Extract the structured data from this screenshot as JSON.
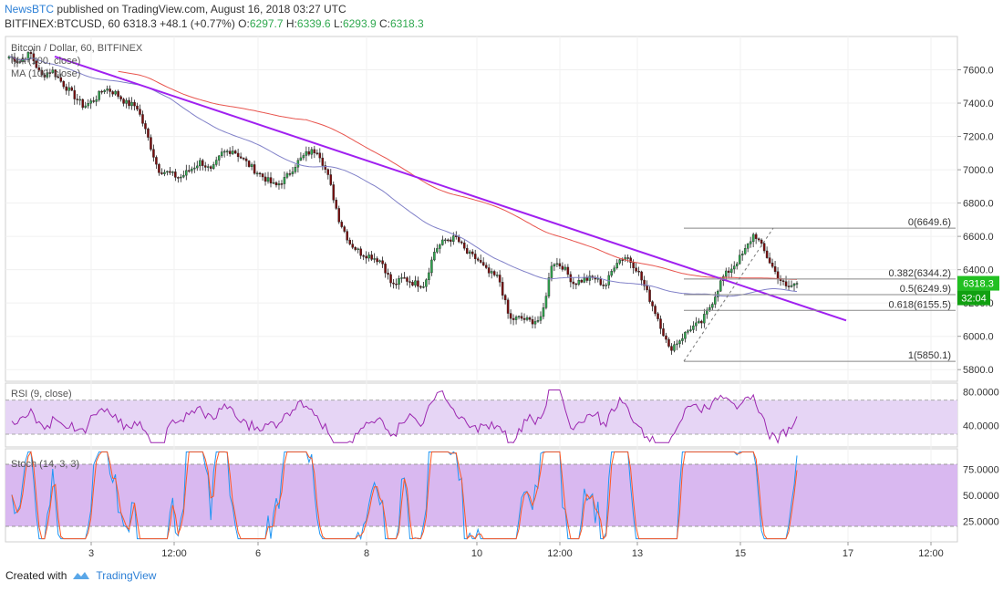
{
  "header": {
    "publisher": "NewsBTC",
    "published_text": "published on TradingView.com, August 16, 2018 03:27 UTC",
    "symbol": "BITFINEX:BTCUSD, 60",
    "last": "6318.3",
    "change": "+48.1 (+0.77%)",
    "o_label": "O:",
    "o_value": "6297.7",
    "h_label": "H:",
    "h_value": "6339.6",
    "l_label": "L:",
    "l_value": "6293.9",
    "c_label": "C:",
    "c_value": "6318.3"
  },
  "footer": {
    "created_with": "Created with",
    "brand": "TradingView"
  },
  "colors": {
    "up": "#2fa84f",
    "down": "#7a0b0b",
    "wick": "#222222",
    "trendline": "#a020f0",
    "ma100": "#8080c8",
    "ma200": "#e8554e",
    "rsi": "#9c27b0",
    "rsi_band": "#e6d5f5",
    "stoch_band": "#d9b8f0",
    "stoch_k": "#2196f3",
    "stoch_d": "#ff5722",
    "fib": "#888888",
    "price_tag": "#22c022"
  },
  "chart_data": [
    {
      "type": "candlestick",
      "title": "Bitcoin / Dollar, 60, BITFINEX",
      "series_labels": [
        "MA (100, close)",
        "MA (100, close)"
      ],
      "x_tick_labels": [
        "3",
        "12:00",
        "6",
        "8",
        "10",
        "12:00",
        "13",
        "15",
        "17",
        "12:00"
      ],
      "y_tick_labels": [
        "7600.0",
        "7400.0",
        "7200.0",
        "7000.0",
        "6800.0",
        "6600.0",
        "6400.0",
        "6200.0",
        "6000.0",
        "5800.0"
      ],
      "ylim": [
        5730,
        7800
      ],
      "last_price_label": "6318.3",
      "countdown_label": "32:04",
      "close_path": [
        7680,
        7650,
        7700,
        7560,
        7600,
        7520,
        7450,
        7380,
        7420,
        7490,
        7460,
        7400,
        7380,
        7200,
        7000,
        6980,
        6950,
        7000,
        7050,
        6990,
        7100,
        7120,
        7060,
        7000,
        6950,
        6900,
        6950,
        7040,
        7100,
        7120,
        6950,
        6700,
        6560,
        6500,
        6480,
        6450,
        6300,
        6350,
        6320,
        6310,
        6520,
        6580,
        6590,
        6500,
        6460,
        6380,
        6350,
        6100,
        6110,
        6090,
        6100,
        6450,
        6420,
        6320,
        6340,
        6350,
        6300,
        6450,
        6480,
        6400,
        6250,
        6100,
        5920,
        5980,
        6050,
        6080,
        6200,
        6350,
        6420,
        6500,
        6620,
        6500,
        6380,
        6290,
        6318
      ],
      "trendline_label": "Descending trend line",
      "fib_levels": [
        {
          "label": "0(6649.6)",
          "value": 6649.6
        },
        {
          "label": "0.382(6344.2)",
          "value": 6344.2
        },
        {
          "label": "0.5(6249.9)",
          "value": 6249.9
        },
        {
          "label": "0.618(6155.5)",
          "value": 6155.5
        },
        {
          "label": "1(5850.1)",
          "value": 5850.1
        }
      ]
    },
    {
      "type": "line",
      "title": "RSI (9, close)",
      "y_tick_labels": [
        "80.0000",
        "40.0000"
      ],
      "ylim": [
        15,
        90
      ],
      "band": [
        30,
        70
      ]
    },
    {
      "type": "line",
      "title": "Stoch (14, 3, 3)",
      "y_tick_labels": [
        "75.0000",
        "50.0000",
        "25.0000"
      ],
      "ylim": [
        5,
        95
      ],
      "band": [
        20,
        80
      ]
    }
  ]
}
